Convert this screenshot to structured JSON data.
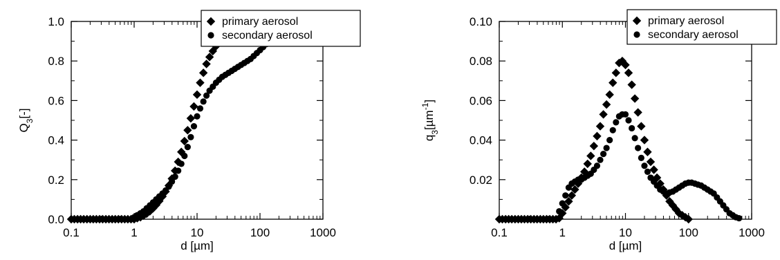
{
  "chart_data": [
    {
      "type": "scatter",
      "x_scale": "log",
      "xlim": [
        0.1,
        1000
      ],
      "ylim": [
        0,
        1.0
      ],
      "x_ticks": [
        "0.1",
        "1",
        "10",
        "100",
        "1000"
      ],
      "y_ticks": [
        "0.0",
        "0.2",
        "0.4",
        "0.6",
        "0.8",
        "1.0"
      ],
      "xlabel": "d [µm]",
      "ylabel_main": "Q",
      "ylabel_sub": "3",
      "ylabel_tail": "[-]",
      "legend_placement": "top-right",
      "series": [
        {
          "name": "primary aerosol",
          "marker": "diamond",
          "x": [
            0.1,
            0.112,
            0.126,
            0.141,
            0.158,
            0.178,
            0.2,
            0.224,
            0.251,
            0.282,
            0.316,
            0.355,
            0.398,
            0.447,
            0.501,
            0.562,
            0.631,
            0.708,
            0.794,
            0.891,
            1.0,
            1.12,
            1.26,
            1.41,
            1.58,
            1.78,
            2.0,
            2.24,
            2.51,
            2.82,
            3.16,
            3.55,
            3.98,
            4.47,
            5.01,
            5.62,
            6.31,
            7.08,
            7.94,
            8.91,
            10.0,
            11.2,
            12.6,
            14.1,
            15.8,
            17.8,
            20.0,
            22.4
          ],
          "y": [
            0.0,
            0.0,
            0.0,
            0.0,
            0.0,
            0.0,
            0.0,
            0.0,
            0.0,
            0.0,
            0.0,
            0.0,
            0.0,
            0.0,
            0.0,
            0.0,
            0.0,
            0.0,
            0.0,
            0.0,
            0.0,
            0.005,
            0.01,
            0.018,
            0.028,
            0.04,
            0.055,
            0.072,
            0.092,
            0.115,
            0.14,
            0.17,
            0.205,
            0.245,
            0.29,
            0.34,
            0.395,
            0.45,
            0.51,
            0.57,
            0.63,
            0.69,
            0.74,
            0.785,
            0.82,
            0.85,
            0.875,
            0.895
          ]
        },
        {
          "name": "secondary aerosol",
          "marker": "circle",
          "x": [
            1.0,
            1.12,
            1.26,
            1.41,
            1.58,
            1.78,
            2.0,
            2.24,
            2.51,
            2.82,
            3.16,
            3.55,
            3.98,
            4.47,
            5.01,
            5.62,
            6.31,
            7.08,
            7.94,
            8.91,
            10.0,
            11.2,
            12.6,
            14.1,
            15.8,
            17.8,
            20.0,
            22.4,
            25.1,
            28.2,
            31.6,
            35.5,
            39.8,
            44.7,
            50.1,
            56.2,
            63.1,
            70.8,
            79.4,
            89.1,
            100.0,
            112.0,
            126.0
          ],
          "y": [
            0.01,
            0.02,
            0.03,
            0.04,
            0.055,
            0.07,
            0.085,
            0.1,
            0.115,
            0.13,
            0.145,
            0.165,
            0.19,
            0.215,
            0.245,
            0.28,
            0.32,
            0.365,
            0.415,
            0.47,
            0.52,
            0.56,
            0.595,
            0.625,
            0.65,
            0.67,
            0.69,
            0.705,
            0.72,
            0.73,
            0.74,
            0.75,
            0.76,
            0.77,
            0.78,
            0.79,
            0.8,
            0.81,
            0.825,
            0.84,
            0.855,
            0.87,
            0.885
          ]
        }
      ]
    },
    {
      "type": "scatter",
      "x_scale": "log",
      "xlim": [
        0.1,
        1000
      ],
      "ylim": [
        0,
        0.1
      ],
      "x_ticks": [
        "0.1",
        "1",
        "10",
        "100",
        "1000"
      ],
      "y_ticks": [
        "0.02",
        "0.04",
        "0.06",
        "0.08",
        "0.10"
      ],
      "xlabel": "d [µm]",
      "ylabel_main": "q",
      "ylabel_sub": "3",
      "ylabel_tail": "[µm",
      "ylabel_sup": "-1",
      "ylabel_close": "]",
      "legend_placement": "top-right",
      "series": [
        {
          "name": "primary aerosol",
          "marker": "diamond",
          "x": [
            0.1,
            0.112,
            0.126,
            0.141,
            0.158,
            0.178,
            0.2,
            0.224,
            0.251,
            0.282,
            0.316,
            0.355,
            0.398,
            0.447,
            0.501,
            0.562,
            0.631,
            0.708,
            0.794,
            0.891,
            1.0,
            1.12,
            1.26,
            1.41,
            1.58,
            1.78,
            2.0,
            2.24,
            2.51,
            2.82,
            3.16,
            3.55,
            3.98,
            4.47,
            5.01,
            5.62,
            6.31,
            7.08,
            7.94,
            8.91,
            10.0,
            11.2,
            12.6,
            14.1,
            15.8,
            17.8,
            20.0,
            22.4,
            25.1,
            28.2,
            31.6,
            35.5,
            39.8,
            44.7,
            50.1,
            56.2,
            63.1,
            70.8,
            79.4,
            89.1,
            100.0
          ],
          "y": [
            0.0,
            0.0,
            0.0,
            0.0,
            0.0,
            0.0,
            0.0,
            0.0,
            0.0,
            0.0,
            0.0,
            0.0,
            0.0,
            0.0,
            0.0,
            0.0,
            0.0,
            0.0,
            0.0,
            0.0005,
            0.003,
            0.006,
            0.009,
            0.012,
            0.015,
            0.018,
            0.021,
            0.024,
            0.028,
            0.032,
            0.037,
            0.042,
            0.047,
            0.053,
            0.058,
            0.063,
            0.069,
            0.074,
            0.079,
            0.08,
            0.078,
            0.074,
            0.068,
            0.061,
            0.054,
            0.047,
            0.04,
            0.034,
            0.029,
            0.025,
            0.021,
            0.018,
            0.015,
            0.012,
            0.009,
            0.007,
            0.005,
            0.003,
            0.002,
            0.001,
            0.0
          ]
        },
        {
          "name": "secondary aerosol",
          "marker": "circle",
          "x": [
            0.891,
            1.0,
            1.12,
            1.26,
            1.41,
            1.58,
            1.78,
            2.0,
            2.24,
            2.51,
            2.82,
            3.16,
            3.55,
            3.98,
            4.47,
            5.01,
            5.62,
            6.31,
            7.08,
            7.94,
            8.91,
            10.0,
            11.2,
            12.6,
            14.1,
            15.8,
            17.8,
            20.0,
            22.4,
            25.1,
            28.2,
            31.6,
            35.5,
            39.8,
            44.7,
            50.1,
            56.2,
            63.1,
            70.8,
            79.4,
            89.1,
            100.0,
            112.0,
            126.0,
            141.0,
            158.0,
            178.0,
            200.0,
            224.0,
            251.0,
            282.0,
            316.0,
            355.0,
            398.0,
            447.0,
            501.0,
            562.0,
            631.0
          ],
          "y": [
            0.004,
            0.008,
            0.012,
            0.016,
            0.018,
            0.019,
            0.02,
            0.02,
            0.021,
            0.022,
            0.023,
            0.025,
            0.027,
            0.03,
            0.033,
            0.036,
            0.04,
            0.045,
            0.049,
            0.052,
            0.053,
            0.053,
            0.05,
            0.046,
            0.041,
            0.036,
            0.031,
            0.027,
            0.024,
            0.021,
            0.019,
            0.017,
            0.015,
            0.014,
            0.013,
            0.0135,
            0.014,
            0.015,
            0.016,
            0.017,
            0.018,
            0.0185,
            0.0185,
            0.018,
            0.0175,
            0.017,
            0.016,
            0.015,
            0.014,
            0.013,
            0.011,
            0.009,
            0.007,
            0.005,
            0.003,
            0.002,
            0.001,
            0.0005
          ]
        }
      ]
    }
  ]
}
